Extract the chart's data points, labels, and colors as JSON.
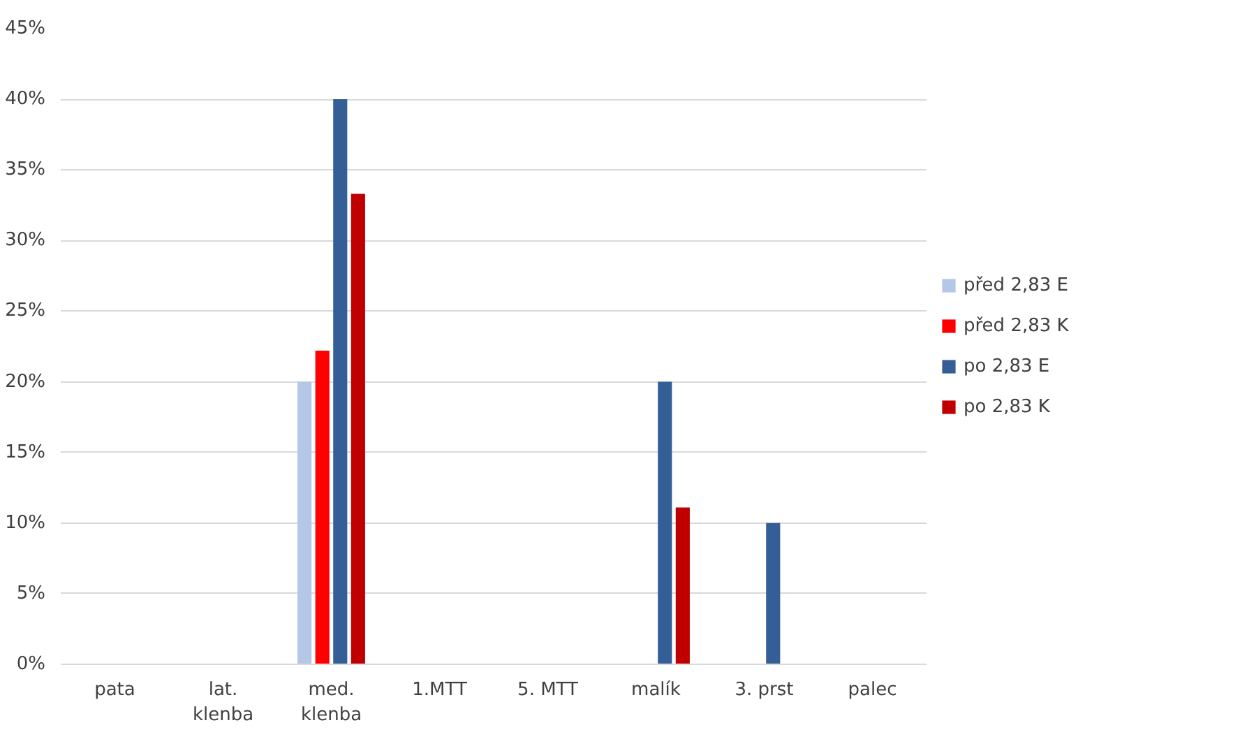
{
  "chart_data": {
    "type": "bar",
    "categories": [
      "pata",
      "lat.\nklenba",
      "med.\nklenba",
      "1.MTT",
      "5. MTT",
      "malík",
      "3. prst",
      "palec"
    ],
    "series": [
      {
        "name": "před 2,83 E",
        "color": "#b4c7e7",
        "values": [
          0,
          0,
          20,
          0,
          0,
          0,
          0,
          0
        ]
      },
      {
        "name": "před 2,83 K",
        "color": "#ff0000",
        "values": [
          0,
          0,
          22.2,
          0,
          0,
          0,
          0,
          0
        ]
      },
      {
        "name": "po 2,83 E",
        "color": "#335f96",
        "values": [
          0,
          0,
          40,
          0,
          0,
          20,
          10,
          0
        ]
      },
      {
        "name": "po 2,83 K",
        "color": "#c00000",
        "values": [
          0,
          0,
          33.3,
          0,
          0,
          11.1,
          0,
          0
        ]
      }
    ],
    "ylim": [
      0,
      45
    ],
    "yticks": [
      {
        "value": 0,
        "label": "0%"
      },
      {
        "value": 5,
        "label": "5%"
      },
      {
        "value": 10,
        "label": "10%"
      },
      {
        "value": 15,
        "label": "15%"
      },
      {
        "value": 20,
        "label": "20%"
      },
      {
        "value": 25,
        "label": "25%"
      },
      {
        "value": 30,
        "label": "30%"
      },
      {
        "value": 35,
        "label": "35%"
      },
      {
        "value": 40,
        "label": "40%"
      },
      {
        "value": 45,
        "label": "45%"
      }
    ],
    "grid": "y",
    "legend": "right"
  }
}
